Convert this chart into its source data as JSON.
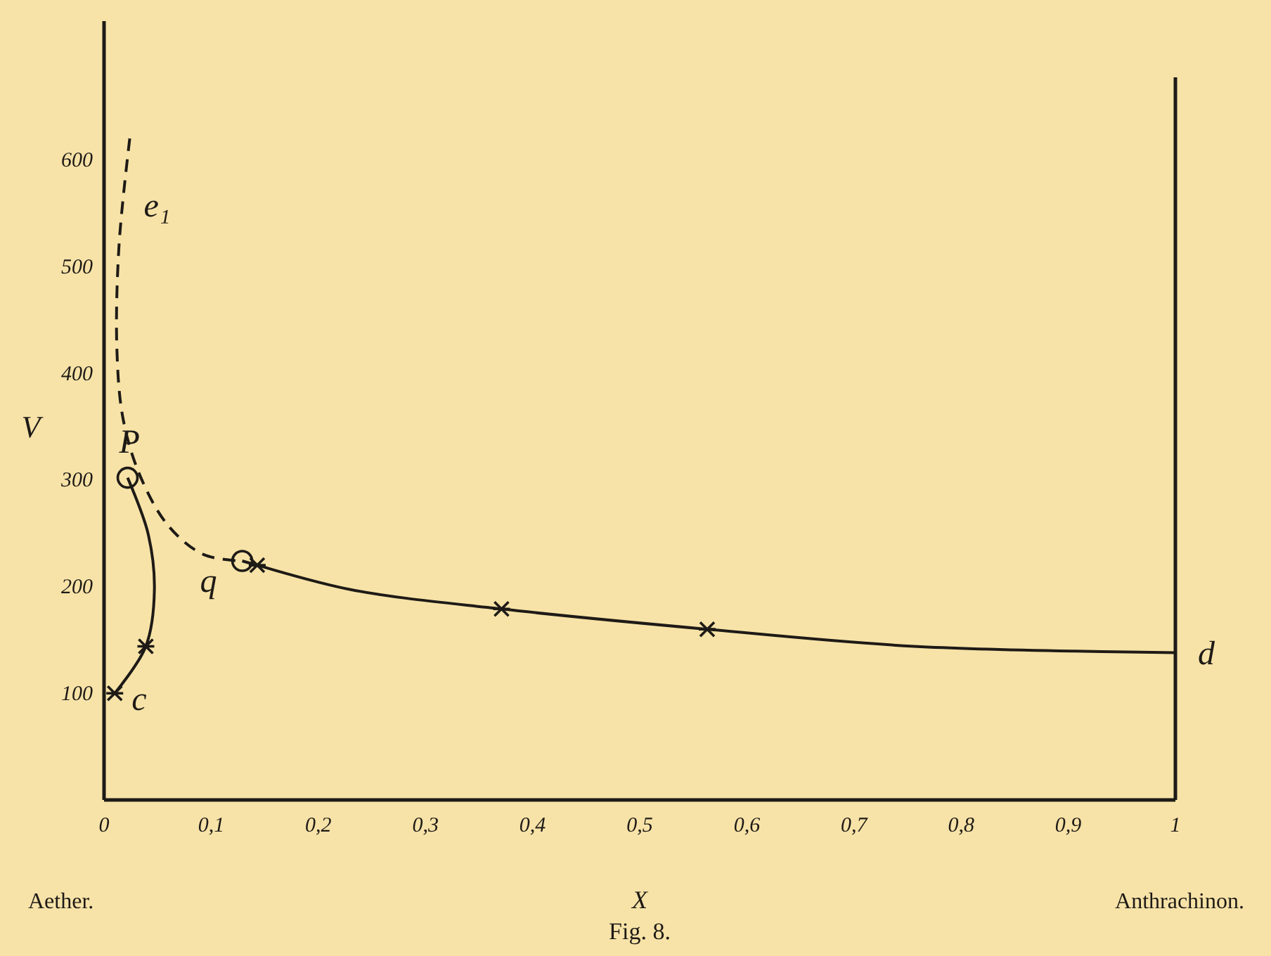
{
  "chart_data": {
    "type": "line",
    "title": "Fig. 8.",
    "xlabel": "X",
    "ylabel": "V",
    "xlim": [
      0,
      1
    ],
    "ylim": [
      0,
      730
    ],
    "xticks": [
      0,
      {
        "value": 0.1,
        "label": "0,1"
      },
      {
        "value": 0.2,
        "label": "0,2"
      },
      {
        "value": 0.3,
        "label": "0,3"
      },
      {
        "value": 0.4,
        "label": "0,4"
      },
      {
        "value": 0.5,
        "label": "0,5"
      },
      {
        "value": 0.6,
        "label": "0,6"
      },
      {
        "value": 0.7,
        "label": "0,7"
      },
      {
        "value": 0.8,
        "label": "0,8"
      },
      {
        "value": 0.9,
        "label": "0,9"
      },
      1
    ],
    "yticks": [
      100,
      200,
      300,
      400,
      500,
      600
    ],
    "grid": false,
    "series": [
      {
        "color": "#1e1a16",
        "line_style": "dashed",
        "x": [
          0.024,
          0.014,
          0.012,
          0.018,
          0.034,
          0.06,
          0.093,
          0.129
        ],
        "values": [
          620,
          520,
          422,
          356,
          303,
          257,
          230,
          224
        ]
      },
      {
        "color": "#1e1a16",
        "line_style": "solid",
        "x": [
          0.022,
          0.041,
          0.047,
          0.039,
          0.01
        ],
        "values": [
          302,
          250,
          197,
          144,
          100
        ]
      },
      {
        "color": "#1e1a16",
        "line_style": "solid",
        "x": [
          0.129,
          0.143,
          0.231,
          0.371,
          0.563,
          0.756,
          1.0
        ],
        "values": [
          224,
          220,
          197,
          179,
          160,
          144,
          138
        ]
      },
      {
        "type": "scatter",
        "color": "#1e1a16",
        "marker": "cross",
        "x": [
          0.01,
          0.039,
          0.143,
          0.371,
          0.563
        ],
        "values": [
          100,
          144,
          220,
          179,
          160
        ]
      },
      {
        "type": "scatter",
        "color": "#1e1a16",
        "marker": "circle",
        "x": [
          0.022,
          0.129
        ],
        "values": [
          302,
          224
        ]
      }
    ],
    "annotations": [
      {
        "text": "e₁",
        "x": 0.024,
        "y": 560
      },
      {
        "text": "P",
        "x": 0.022,
        "y": 302
      },
      {
        "text": "q",
        "x": 0.129,
        "y": 224
      },
      {
        "text": "c",
        "x": 0.01,
        "y": 100
      },
      {
        "text": "d",
        "x": 1.0,
        "y": 138
      },
      "Aether.",
      "Anthrachinon."
    ]
  }
}
